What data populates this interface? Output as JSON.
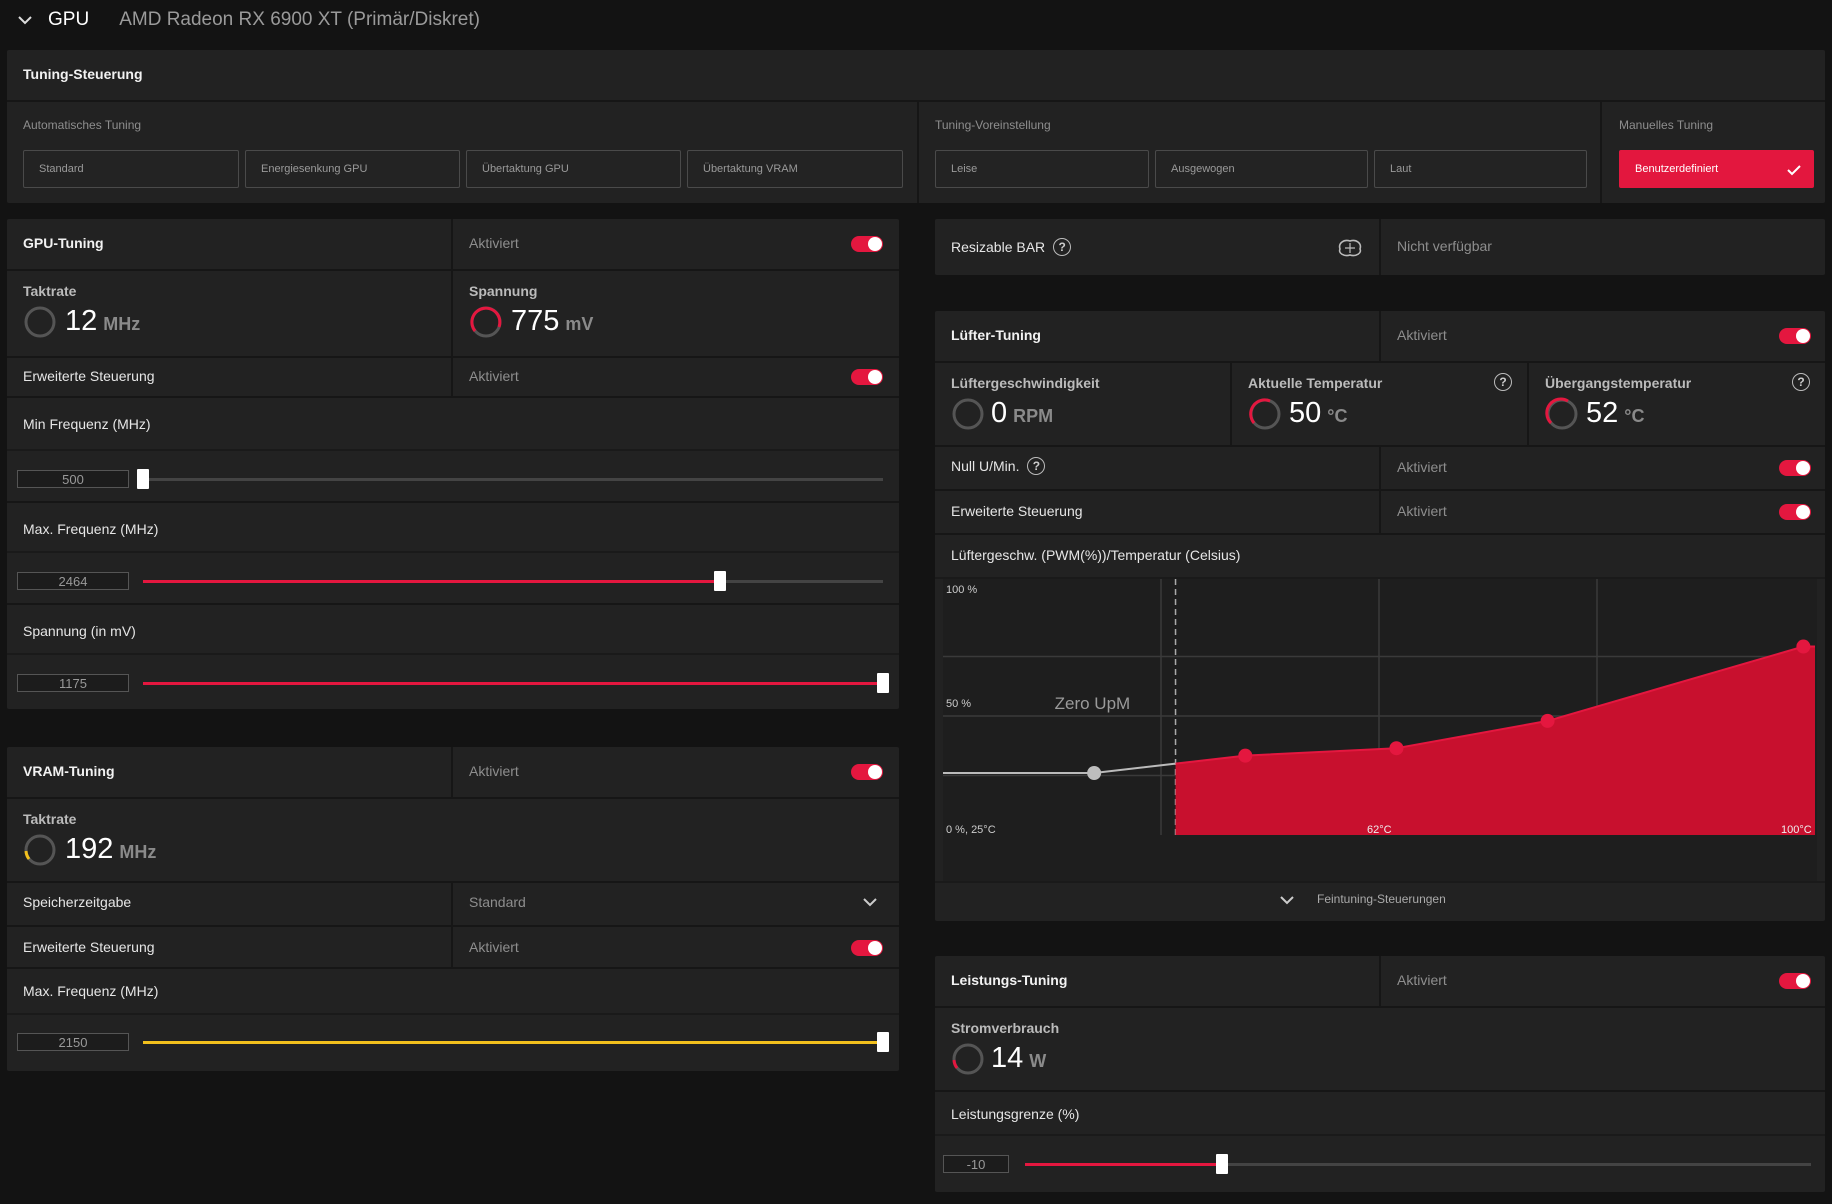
{
  "topbar": {
    "section": "GPU",
    "device": "AMD Radeon RX 6900 XT (Primär/Diskret)"
  },
  "tuning_control": {
    "title": "Tuning-Steuerung",
    "auto_label": "Automatisches Tuning",
    "auto_buttons": [
      "Standard",
      "Energiesenkung GPU",
      "Übertaktung GPU",
      "Übertaktung VRAM"
    ],
    "preset_label": "Tuning-Voreinstellung",
    "preset_buttons": [
      "Leise",
      "Ausgewogen",
      "Laut"
    ],
    "manual_label": "Manuelles Tuning",
    "manual_button": "Benutzerdefiniert"
  },
  "gpu_tuning": {
    "title": "GPU-Tuning",
    "status": "Aktiviert",
    "clock_label": "Taktrate",
    "clock_value": "12",
    "clock_unit": "MHz",
    "voltage_label": "Spannung",
    "voltage_value": "775",
    "voltage_unit": "mV",
    "advanced_label": "Erweiterte Steuerung",
    "advanced_status": "Aktiviert",
    "min_freq_label": "Min Frequenz (MHz)",
    "min_freq_value": "500",
    "min_freq_fraction": 0.0,
    "max_freq_label": "Max. Frequenz (MHz)",
    "max_freq_value": "2464",
    "max_freq_fraction": 0.78,
    "voltage_set_label": "Spannung (in mV)",
    "voltage_set_value": "1175",
    "voltage_set_fraction": 1.0
  },
  "vram_tuning": {
    "title": "VRAM-Tuning",
    "status": "Aktiviert",
    "clock_label": "Taktrate",
    "clock_value": "192",
    "clock_unit": "MHz",
    "timing_label": "Speicherzeitgabe",
    "timing_value": "Standard",
    "advanced_label": "Erweiterte Steuerung",
    "advanced_status": "Aktiviert",
    "max_freq_label": "Max. Frequenz (MHz)",
    "max_freq_value": "2150",
    "max_freq_fraction": 1.0
  },
  "resizable_bar": {
    "label": "Resizable BAR",
    "status": "Nicht verfügbar"
  },
  "fan_tuning": {
    "title": "Lüfter-Tuning",
    "status": "Aktiviert",
    "speed_label": "Lüftergeschwindigkeit",
    "speed_value": "0",
    "speed_unit": "RPM",
    "temp_label": "Aktuelle Temperatur",
    "temp_value": "50",
    "temp_unit": "°C",
    "junction_label": "Übergangstemperatur",
    "junction_value": "52",
    "junction_unit": "°C",
    "zero_rpm_label": "Null U/Min.",
    "zero_rpm_status": "Aktiviert",
    "advanced_label": "Erweiterte Steuerung",
    "advanced_status": "Aktiviert",
    "curve_title": "Lüftergeschw. (PWM(%))/Temperatur (Celsius)",
    "fine_tuning": "Feintuning-Steuerungen"
  },
  "chart_data": {
    "type": "area",
    "title": "Lüftergeschw. (PWM(%))/Temperatur (Celsius)",
    "y_tick_labels": [
      "100 %",
      "50 %",
      "0 %, 25°C"
    ],
    "x_tick_labels": [
      "62°C",
      "100°C"
    ],
    "annotation": "Zero UpM",
    "xlim": [
      25,
      100
    ],
    "ylim": [
      0,
      100
    ],
    "zero_rpm_limit": 45,
    "points": [
      {
        "x": 38,
        "y": 25
      },
      {
        "x": 51,
        "y": 32
      },
      {
        "x": 64,
        "y": 35
      },
      {
        "x": 77,
        "y": 46
      },
      {
        "x": 99,
        "y": 76
      }
    ],
    "grid": true
  },
  "power_tuning": {
    "title": "Leistungs-Tuning",
    "status": "Aktiviert",
    "power_label": "Stromverbrauch",
    "power_value": "14",
    "power_unit": "W",
    "limit_label": "Leistungsgrenze (%)",
    "limit_value": "-10",
    "limit_fraction": 0.25
  },
  "colors": {
    "accent": "#e4173f",
    "vram": "#f2c01d",
    "panel": "#222222"
  }
}
